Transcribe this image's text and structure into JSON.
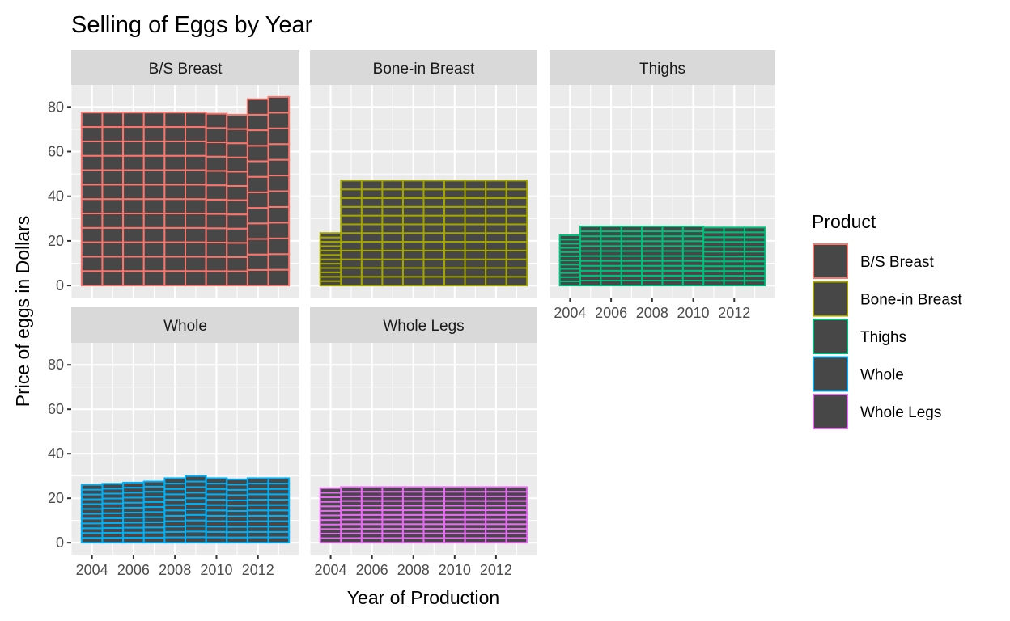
{
  "chart_data": {
    "type": "bar",
    "title": "Selling of Eggs by Year",
    "xlabel": "Year of Production",
    "ylabel": "Price of eggs in Dollars",
    "legend_title": "Product",
    "legend_position": "right",
    "x": [
      2004,
      2005,
      2006,
      2007,
      2008,
      2009,
      2010,
      2011,
      2012,
      2013
    ],
    "x_ticks": [
      "2004",
      "2006",
      "2008",
      "2010",
      "2012"
    ],
    "y_ticks": [
      "0",
      "20",
      "40",
      "60",
      "80"
    ],
    "ylim": [
      0,
      88
    ],
    "segments_per_bar": 12,
    "series": [
      {
        "name": "B/S Breast",
        "color": "#F8766D",
        "values": [
          77.5,
          77.5,
          77.5,
          77.5,
          77.5,
          77.5,
          77,
          76.5,
          83.5,
          84.5
        ]
      },
      {
        "name": "Bone-in Breast",
        "color": "#A3A500",
        "values": [
          23.5,
          47,
          47,
          47,
          47,
          47,
          47,
          47,
          47,
          47
        ]
      },
      {
        "name": "Thighs",
        "color": "#00BF7D",
        "values": [
          22.5,
          26.5,
          26.5,
          26.5,
          26.5,
          26.5,
          26.5,
          26,
          26,
          26
        ]
      },
      {
        "name": "Whole",
        "color": "#00B0F6",
        "values": [
          26,
          26.5,
          27,
          27.5,
          29,
          30,
          29,
          28.5,
          29,
          29
        ]
      },
      {
        "name": "Whole Legs",
        "color": "#E76BF3",
        "values": [
          24.5,
          25,
          25,
          25,
          25,
          25,
          25,
          25,
          25,
          25
        ]
      }
    ]
  }
}
